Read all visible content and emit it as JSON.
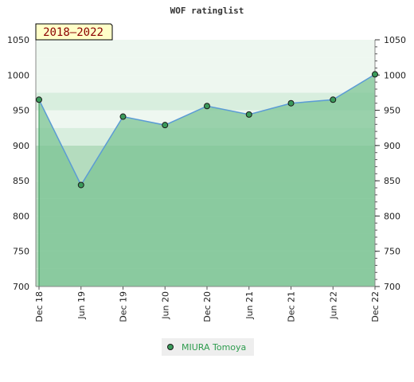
{
  "chart_data": {
    "type": "area",
    "title": "WOF ratinglist",
    "period_label": "2018–2022",
    "x": [
      "Dec 18",
      "Jun 19",
      "Dec 19",
      "Jun 20",
      "Dec 20",
      "Jun 21",
      "Dec 21",
      "Jun 22",
      "Dec 22"
    ],
    "series": [
      {
        "name": "MIURA Tomoya",
        "values": [
          965,
          844,
          941,
          929,
          956,
          944,
          960,
          965,
          1001
        ]
      }
    ],
    "ylim": [
      700,
      1050
    ],
    "y_ticks": [
      700,
      750,
      800,
      850,
      900,
      950,
      1000,
      1050
    ],
    "y_axis_both_sides": true,
    "grid": true,
    "legend_position": "bottom-center",
    "colors": {
      "line": "#5b9bd5",
      "fill": "#7cc494",
      "marker": "#3a9a5a",
      "band_light": "#eef7f0",
      "band_mid": "#d8eede",
      "band_dark": "#b4dcbe",
      "period_bg": "#ffffc8",
      "period_text": "#8b0000",
      "legend_text": "#2e9c4e"
    }
  }
}
